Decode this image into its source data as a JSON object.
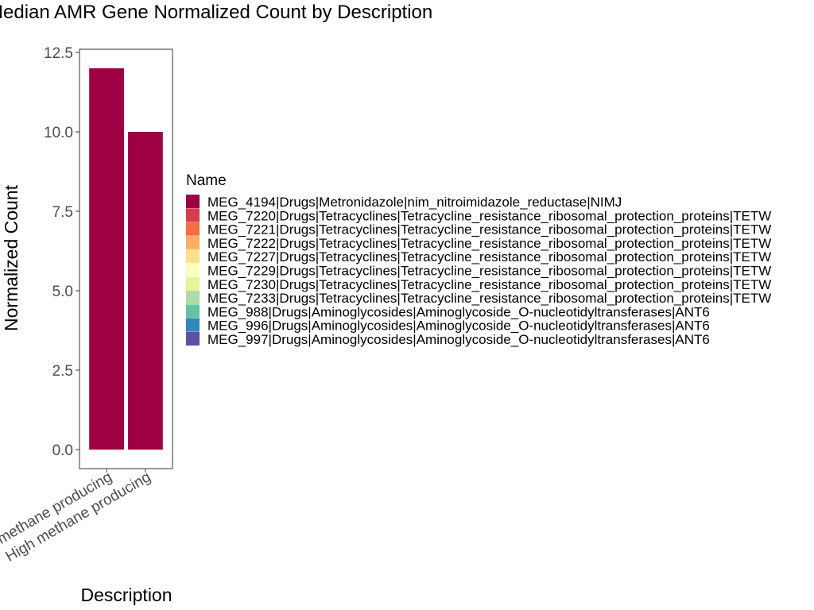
{
  "chart_data": {
    "type": "bar",
    "title": "Median AMR Gene Normalized Count by Description",
    "xlabel": "Description",
    "ylabel": "Normalized Count",
    "categories": [
      "Low methane producing",
      "High methane producing"
    ],
    "values": [
      12,
      10
    ],
    "bar_color": "#9E0142",
    "ylim": [
      0,
      12.5
    ],
    "yticks": [
      "0.0",
      "2.5",
      "5.0",
      "7.5",
      "10.0",
      "12.5"
    ],
    "grid": false,
    "legend": {
      "title": "Name",
      "placement": "right",
      "entries": [
        {
          "label": "MEG_4194|Drugs|Metronidazole|nim_nitroimidazole_reductase|NIMJ",
          "color": "#9E0142"
        },
        {
          "label": "MEG_7220|Drugs|Tetracyclines|Tetracycline_resistance_ribosomal_protection_proteins|TETW",
          "color": "#D53E4F"
        },
        {
          "label": "MEG_7221|Drugs|Tetracyclines|Tetracycline_resistance_ribosomal_protection_proteins|TETW",
          "color": "#F46D43"
        },
        {
          "label": "MEG_7222|Drugs|Tetracyclines|Tetracycline_resistance_ribosomal_protection_proteins|TETW",
          "color": "#FDAE61"
        },
        {
          "label": "MEG_7227|Drugs|Tetracyclines|Tetracycline_resistance_ribosomal_protection_proteins|TETW",
          "color": "#FEE08B"
        },
        {
          "label": "MEG_7229|Drugs|Tetracyclines|Tetracycline_resistance_ribosomal_protection_proteins|TETW",
          "color": "#FFFFBF"
        },
        {
          "label": "MEG_7230|Drugs|Tetracyclines|Tetracycline_resistance_ribosomal_protection_proteins|TETW",
          "color": "#E6F598"
        },
        {
          "label": "MEG_7233|Drugs|Tetracyclines|Tetracycline_resistance_ribosomal_protection_proteins|TETW",
          "color": "#ABDDA4"
        },
        {
          "label": "MEG_988|Drugs|Aminoglycosides|Aminoglycoside_O-nucleotidyltransferases|ANT6",
          "color": "#66C2A5"
        },
        {
          "label": "MEG_996|Drugs|Aminoglycosides|Aminoglycoside_O-nucleotidyltransferases|ANT6",
          "color": "#3288BD"
        },
        {
          "label": "MEG_997|Drugs|Aminoglycosides|Aminoglycoside_O-nucleotidyltransferases|ANT6",
          "color": "#5E4FA2"
        }
      ]
    }
  }
}
